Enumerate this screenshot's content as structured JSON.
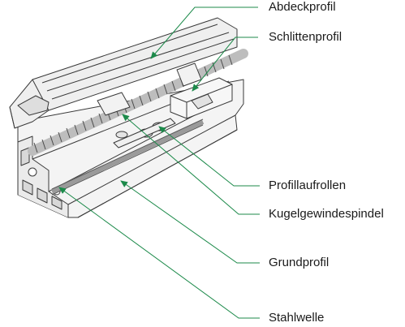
{
  "labels": {
    "abdeckprofil": "Abdeckprofil",
    "schlittenprofil": "Schlittenprofil",
    "profillaufrollen": "Profillaufrollen",
    "kugelgewindespindel": "Kugelgewindespindel",
    "grundprofil": "Grundprofil",
    "stahlwelle": "Stahlwelle"
  },
  "colors": {
    "leader": "#1c8a4a",
    "line_art": "#3a3a3a",
    "shade": "#c8c8c8"
  }
}
